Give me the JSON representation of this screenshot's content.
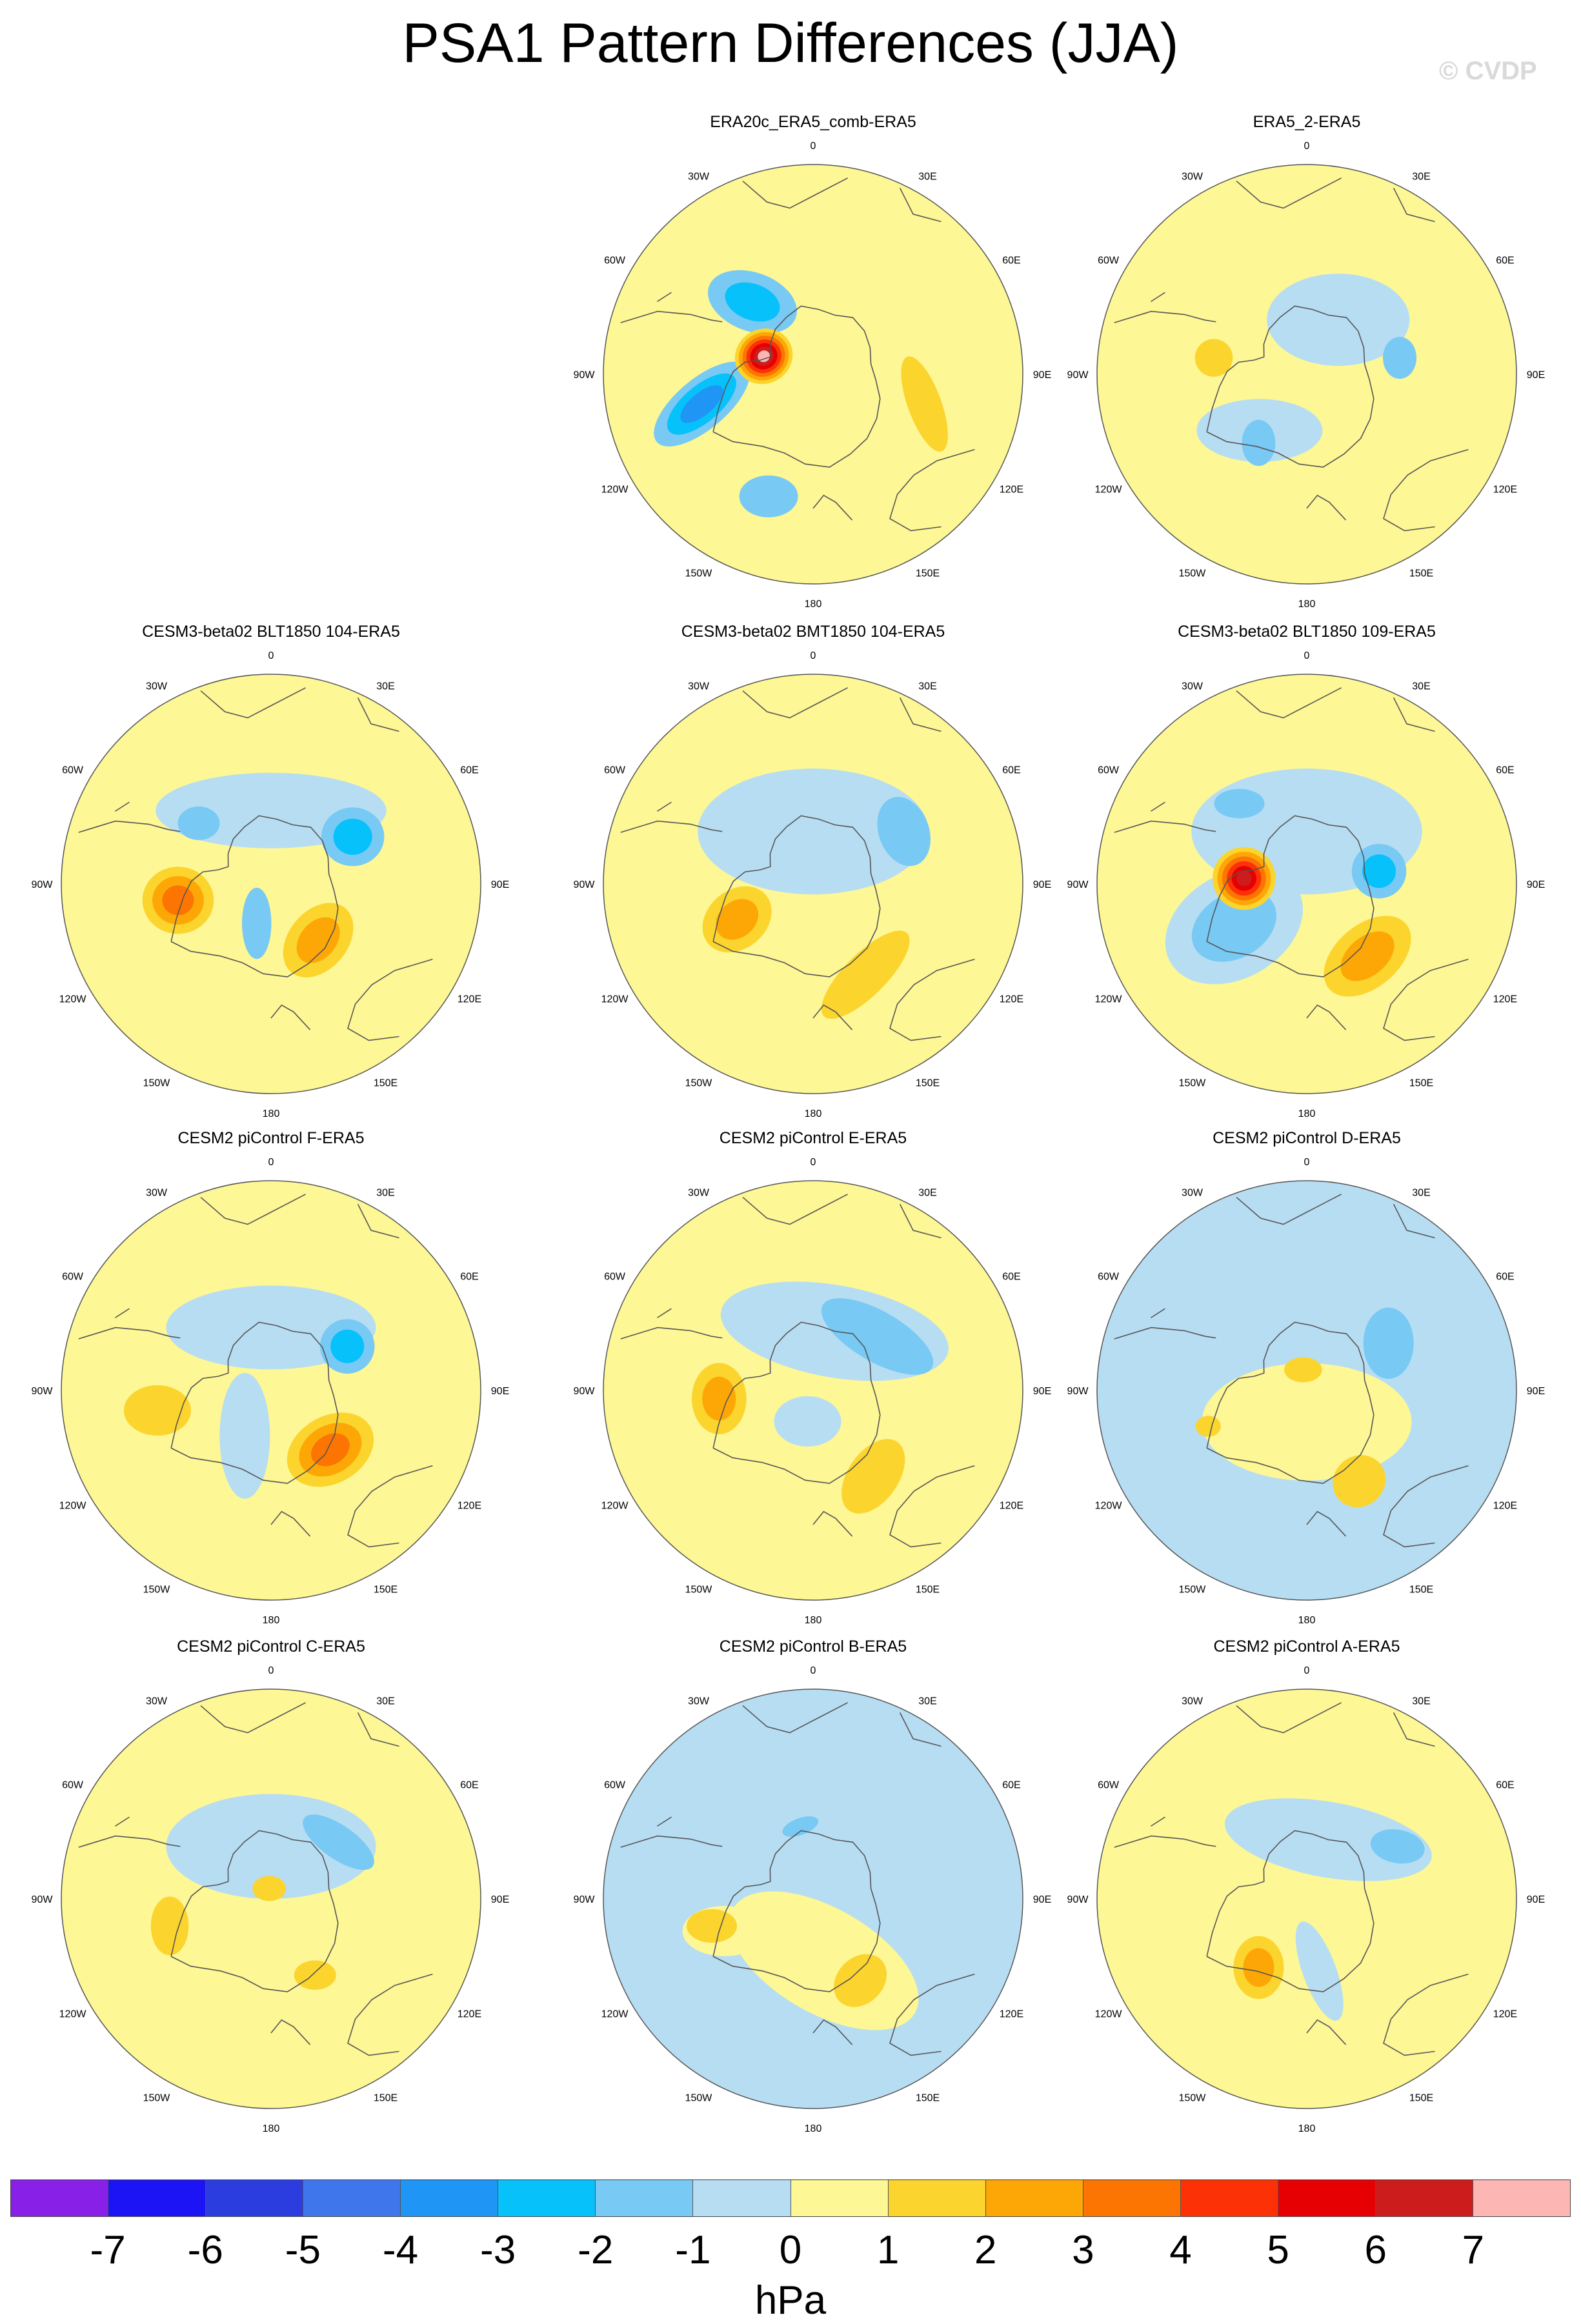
{
  "title": "PSA1 Pattern Differences (JJA)",
  "watermark": "© CVDP",
  "longitude_labels": [
    "0",
    "30E",
    "60E",
    "90E",
    "120E",
    "150E",
    "180",
    "150W",
    "120W",
    "90W",
    "60W",
    "30W"
  ],
  "colors": {
    "land_outline": "#555555",
    "map_border": "#555555",
    "levels": [
      "#8820e8",
      "#1c14f5",
      "#2c3de0",
      "#3f76ec",
      "#1f95f5",
      "#06c1fa",
      "#78c9f4",
      "#b7ddf3",
      "#fdf795",
      "#fcd42e",
      "#fda706",
      "#fc7503",
      "#fc3106",
      "#e60004",
      "#cd1c1c",
      "#fcb6b4"
    ]
  },
  "colorbar": {
    "ticks": [
      "-7",
      "-6",
      "-5",
      "-4",
      "-3",
      "-2",
      "-1",
      "0",
      "1",
      "2",
      "3",
      "4",
      "5",
      "6",
      "7"
    ],
    "units": "hPa"
  },
  "panels": [
    {
      "title": "",
      "empty": true
    },
    {
      "title": "ERA20c_ERA5_comb-ERA5",
      "background": 8,
      "blobs": [
        {
          "lon": 255,
          "r": 0.55,
          "rx": 0.28,
          "ry": 0.12,
          "rot": -40,
          "levels": [
            6,
            5,
            4
          ]
        },
        {
          "lon": 320,
          "r": 0.45,
          "rx": 0.22,
          "ry": 0.14,
          "rot": 20,
          "levels": [
            6,
            5
          ]
        },
        {
          "lon": 200,
          "r": 0.62,
          "rx": 0.14,
          "ry": 0.1,
          "rot": 0,
          "levels": [
            6
          ]
        },
        {
          "lon": 290,
          "r": 0.25,
          "rx": 0.14,
          "ry": 0.13,
          "rot": -30,
          "levels": [
            9,
            10,
            11,
            12,
            13,
            14,
            15
          ]
        },
        {
          "lon": 105,
          "r": 0.55,
          "rx": 0.24,
          "ry": 0.08,
          "rot": 70,
          "levels": [
            9
          ]
        }
      ]
    },
    {
      "title": "ERA5_2-ERA5",
      "background": 8,
      "blobs": [
        {
          "lon": 30,
          "r": 0.3,
          "rx": 0.34,
          "ry": 0.22,
          "rot": 0,
          "levels": [
            7
          ]
        },
        {
          "lon": 80,
          "r": 0.45,
          "rx": 0.08,
          "ry": 0.1,
          "rot": 0,
          "levels": [
            6
          ]
        },
        {
          "lon": 220,
          "r": 0.35,
          "rx": 0.3,
          "ry": 0.15,
          "rot": 0,
          "levels": [
            7
          ]
        },
        {
          "lon": 215,
          "r": 0.4,
          "rx": 0.08,
          "ry": 0.11,
          "rot": 0,
          "levels": [
            6
          ]
        },
        {
          "lon": 280,
          "r": 0.45,
          "rx": 0.09,
          "ry": 0.09,
          "rot": 0,
          "levels": [
            9
          ]
        }
      ]
    },
    {
      "title": "CESM3-beta02 BLT1850 104-ERA5",
      "background": 8,
      "blobs": [
        {
          "lon": 0,
          "r": 0.35,
          "rx": 0.55,
          "ry": 0.18,
          "rot": 0,
          "levels": [
            7
          ]
        },
        {
          "lon": 310,
          "r": 0.45,
          "rx": 0.1,
          "ry": 0.08,
          "rot": 0,
          "levels": [
            6
          ]
        },
        {
          "lon": 60,
          "r": 0.45,
          "rx": 0.15,
          "ry": 0.14,
          "rot": 0,
          "levels": [
            6,
            5
          ]
        },
        {
          "lon": 260,
          "r": 0.45,
          "rx": 0.17,
          "ry": 0.16,
          "rot": 0,
          "levels": [
            9,
            10,
            11
          ]
        },
        {
          "lon": 140,
          "r": 0.35,
          "rx": 0.2,
          "ry": 0.14,
          "rot": -50,
          "levels": [
            9,
            10
          ]
        },
        {
          "lon": 200,
          "r": 0.2,
          "rx": 0.07,
          "ry": 0.17,
          "rot": 0,
          "levels": [
            6
          ]
        }
      ]
    },
    {
      "title": "CESM3-beta02 BMT1850 104-ERA5",
      "background": 8,
      "blobs": [
        {
          "lon": 0,
          "r": 0.25,
          "rx": 0.55,
          "ry": 0.3,
          "rot": 0,
          "levels": [
            7
          ]
        },
        {
          "lon": 60,
          "r": 0.5,
          "rx": 0.12,
          "ry": 0.17,
          "rot": -20,
          "levels": [
            6
          ]
        },
        {
          "lon": 245,
          "r": 0.4,
          "rx": 0.18,
          "ry": 0.14,
          "rot": -40,
          "levels": [
            9,
            10
          ]
        },
        {
          "lon": 150,
          "r": 0.5,
          "rx": 0.28,
          "ry": 0.1,
          "rot": -45,
          "levels": [
            9
          ]
        }
      ]
    },
    {
      "title": "CESM3-beta02 BLT1850 109-ERA5",
      "background": 8,
      "blobs": [
        {
          "lon": 0,
          "r": 0.25,
          "rx": 0.55,
          "ry": 0.3,
          "rot": 0,
          "levels": [
            7
          ]
        },
        {
          "lon": 240,
          "r": 0.4,
          "rx": 0.35,
          "ry": 0.25,
          "rot": -30,
          "levels": [
            7,
            6
          ]
        },
        {
          "lon": 320,
          "r": 0.5,
          "rx": 0.12,
          "ry": 0.07,
          "rot": 0,
          "levels": [
            6
          ]
        },
        {
          "lon": 80,
          "r": 0.35,
          "rx": 0.13,
          "ry": 0.13,
          "rot": 0,
          "levels": [
            6,
            5
          ]
        },
        {
          "lon": 275,
          "r": 0.3,
          "rx": 0.15,
          "ry": 0.15,
          "rot": 0,
          "levels": [
            9,
            10,
            11,
            12,
            13,
            14
          ]
        },
        {
          "lon": 140,
          "r": 0.45,
          "rx": 0.24,
          "ry": 0.15,
          "rot": -40,
          "levels": [
            9,
            10
          ]
        }
      ]
    },
    {
      "title": "CESM2 piControl F-ERA5",
      "background": 8,
      "blobs": [
        {
          "lon": 0,
          "r": 0.3,
          "rx": 0.5,
          "ry": 0.2,
          "rot": 0,
          "levels": [
            7
          ]
        },
        {
          "lon": 60,
          "r": 0.42,
          "rx": 0.13,
          "ry": 0.13,
          "rot": 0,
          "levels": [
            6,
            5
          ]
        },
        {
          "lon": 210,
          "r": 0.25,
          "rx": 0.12,
          "ry": 0.3,
          "rot": 0,
          "levels": [
            7
          ]
        },
        {
          "lon": 260,
          "r": 0.55,
          "rx": 0.16,
          "ry": 0.12,
          "rot": 0,
          "levels": [
            9
          ]
        },
        {
          "lon": 135,
          "r": 0.4,
          "rx": 0.22,
          "ry": 0.16,
          "rot": -30,
          "levels": [
            9,
            10,
            11
          ]
        }
      ]
    },
    {
      "title": "CESM2 piControl E-ERA5",
      "background": 8,
      "blobs": [
        {
          "lon": 20,
          "r": 0.3,
          "rx": 0.55,
          "ry": 0.22,
          "rot": 10,
          "levels": [
            7
          ]
        },
        {
          "lon": 50,
          "r": 0.4,
          "rx": 0.3,
          "ry": 0.12,
          "rot": 30,
          "levels": [
            6
          ]
        },
        {
          "lon": 190,
          "r": 0.15,
          "rx": 0.16,
          "ry": 0.12,
          "rot": 0,
          "levels": [
            7
          ]
        },
        {
          "lon": 265,
          "r": 0.45,
          "rx": 0.13,
          "ry": 0.17,
          "rot": 0,
          "levels": [
            9,
            10
          ]
        },
        {
          "lon": 145,
          "r": 0.5,
          "rx": 0.2,
          "ry": 0.12,
          "rot": -55,
          "levels": [
            9
          ]
        }
      ]
    },
    {
      "title": "CESM2 piControl D-ERA5",
      "background": 7,
      "blobs": [
        {
          "lon": 180,
          "r": 0.15,
          "rx": 0.5,
          "ry": 0.28,
          "rot": 0,
          "levels": [
            8
          ]
        },
        {
          "lon": 60,
          "r": 0.45,
          "rx": 0.12,
          "ry": 0.17,
          "rot": 0,
          "levels": [
            6
          ]
        },
        {
          "lon": 350,
          "r": 0.1,
          "rx": 0.09,
          "ry": 0.06,
          "rot": 0,
          "levels": [
            9
          ]
        },
        {
          "lon": 250,
          "r": 0.5,
          "rx": 0.06,
          "ry": 0.05,
          "rot": 0,
          "levels": [
            9
          ]
        },
        {
          "lon": 150,
          "r": 0.5,
          "rx": 0.13,
          "ry": 0.12,
          "rot": -40,
          "levels": [
            9
          ]
        }
      ]
    },
    {
      "title": "CESM2 piControl C-ERA5",
      "background": 8,
      "blobs": [
        {
          "lon": 0,
          "r": 0.25,
          "rx": 0.5,
          "ry": 0.25,
          "rot": 0,
          "levels": [
            7
          ]
        },
        {
          "lon": 50,
          "r": 0.42,
          "rx": 0.2,
          "ry": 0.08,
          "rot": 35,
          "levels": [
            6
          ]
        },
        {
          "lon": 350,
          "r": 0.05,
          "rx": 0.08,
          "ry": 0.06,
          "rot": 0,
          "levels": [
            9
          ]
        },
        {
          "lon": 255,
          "r": 0.5,
          "rx": 0.09,
          "ry": 0.14,
          "rot": 0,
          "levels": [
            9
          ]
        },
        {
          "lon": 150,
          "r": 0.42,
          "rx": 0.1,
          "ry": 0.07,
          "rot": 0,
          "levels": [
            9
          ]
        }
      ]
    },
    {
      "title": "CESM2 piControl B-ERA5",
      "background": 7,
      "blobs": [
        {
          "lon": 170,
          "r": 0.3,
          "rx": 0.5,
          "ry": 0.25,
          "rot": 30,
          "levels": [
            8
          ]
        },
        {
          "lon": 250,
          "r": 0.45,
          "rx": 0.2,
          "ry": 0.12,
          "rot": 0,
          "levels": [
            8
          ]
        },
        {
          "lon": 350,
          "r": 0.35,
          "rx": 0.09,
          "ry": 0.04,
          "rot": -20,
          "levels": [
            6
          ]
        },
        {
          "lon": 255,
          "r": 0.5,
          "rx": 0.12,
          "ry": 0.08,
          "rot": 0,
          "levels": [
            9
          ]
        },
        {
          "lon": 150,
          "r": 0.45,
          "rx": 0.14,
          "ry": 0.11,
          "rot": -45,
          "levels": [
            9
          ]
        }
      ]
    },
    {
      "title": "CESM2 piControl A-ERA5",
      "background": 8,
      "blobs": [
        {
          "lon": 20,
          "r": 0.3,
          "rx": 0.5,
          "ry": 0.18,
          "rot": 10,
          "levels": [
            7
          ]
        },
        {
          "lon": 60,
          "r": 0.5,
          "rx": 0.13,
          "ry": 0.08,
          "rot": 10,
          "levels": [
            6
          ]
        },
        {
          "lon": 170,
          "r": 0.35,
          "rx": 0.08,
          "ry": 0.25,
          "rot": -20,
          "levels": [
            7
          ]
        },
        {
          "lon": 215,
          "r": 0.4,
          "rx": 0.12,
          "ry": 0.15,
          "rot": 0,
          "levels": [
            9,
            10
          ]
        }
      ]
    }
  ]
}
